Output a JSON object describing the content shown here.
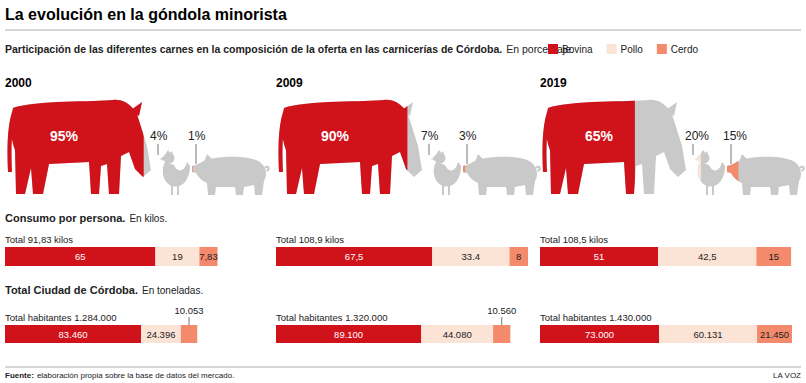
{
  "header": {
    "title": "La evolución en la góndola minorista",
    "credit": "LA VOZ"
  },
  "footer": {
    "source_label": "Fuente:",
    "source": "elaboración propia sobre la base de datos del mercado."
  },
  "chart_data": [
    {
      "type": "pictogram",
      "title": "Participación de las diferentes carnes en la composición de la oferta en las carnicerías de Córdoba.",
      "subtitle": "En porcentaje.",
      "legend": "top-right",
      "data_labels": true,
      "categories": [
        "2000",
        "2009",
        "2019"
      ],
      "series": [
        {
          "name": "Bovina",
          "color": "#d0121b",
          "values": [
            95,
            90,
            65
          ],
          "value_labels": [
            "95%",
            "90%",
            "65%"
          ]
        },
        {
          "name": "Pollo",
          "color": "#fbe3d6",
          "values": [
            4,
            7,
            20
          ],
          "value_labels": [
            "4%",
            "7%",
            "20%"
          ]
        },
        {
          "name": "Cerdo",
          "color": "#f28a6b",
          "values": [
            1,
            3,
            15
          ],
          "value_labels": [
            "1%",
            "3%",
            "15%"
          ]
        }
      ]
    },
    {
      "type": "bar",
      "orientation": "horizontal",
      "stacked": true,
      "data_labels": true,
      "tick_labels": false,
      "title": "Consumo por persona.",
      "subtitle": "En kilos.",
      "categories": [
        "Total 91,83 kilos",
        "Total 108,9 kilos",
        "Total 108,5 kilos"
      ],
      "series": [
        {
          "color": "#d0121b",
          "values": [
            65,
            67.5,
            51
          ],
          "value_labels": [
            "65",
            "67,5",
            "51"
          ]
        },
        {
          "color": "#fbe3d6",
          "values": [
            19,
            33.4,
            42.5
          ],
          "value_labels": [
            "19",
            "33.4",
            "42,5"
          ]
        },
        {
          "color": "#f28a6b",
          "values": [
            7.83,
            8,
            15
          ],
          "value_labels": [
            "7,83",
            "8",
            "15"
          ]
        }
      ]
    },
    {
      "type": "bar",
      "orientation": "horizontal",
      "stacked": true,
      "data_labels": true,
      "tick_labels": false,
      "title": "Total Ciudad de Córdoba.",
      "subtitle": "En toneladas.",
      "categories": [
        "Total habitantes 1.284.000",
        "Total habitantes 1.320.000",
        "Total habitantes 1.430.000"
      ],
      "series": [
        {
          "color": "#d0121b",
          "values": [
            83460,
            89100,
            73000
          ],
          "value_labels": [
            "83.460",
            "89.100",
            "73.000"
          ]
        },
        {
          "color": "#fbe3d6",
          "values": [
            24396,
            44080,
            60131
          ],
          "value_labels": [
            "24.396",
            "44.080",
            "60.131"
          ]
        },
        {
          "color": "#f28a6b",
          "values": [
            10053,
            10560,
            21450
          ],
          "value_labels": [
            "10.053",
            "10.560",
            "21.450"
          ]
        }
      ]
    }
  ]
}
